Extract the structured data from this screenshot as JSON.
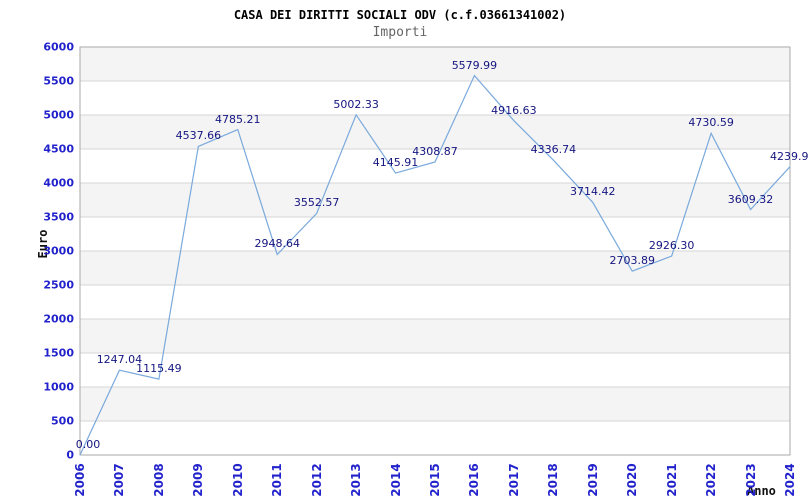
{
  "header": {
    "title": "CASA DEI DIRITTI SOCIALI ODV (c.f.03661341002)",
    "subtitle": "Importi"
  },
  "colors": {
    "line": "#7aa9dc",
    "tick_label": "#2222cc",
    "point_label": "#151580",
    "band_gray": "#f4f4f4",
    "band_white": "#ffffff",
    "gridline": "#d6d6d6",
    "plot_border": "#aaaaaa",
    "title": "#000000",
    "subtitle": "#666666",
    "axis_title": "#111111"
  },
  "chart_data": {
    "type": "line",
    "title": "CASA DEI DIRITTI SOCIALI ODV (c.f.03661341002)",
    "subtitle": "Importi",
    "xlabel": "Anno",
    "ylabel": "Euro",
    "categories": [
      "2006",
      "2007",
      "2008",
      "2009",
      "2010",
      "2011",
      "2012",
      "2013",
      "2014",
      "2015",
      "2016",
      "2017",
      "2018",
      "2019",
      "2020",
      "2021",
      "2022",
      "2023",
      "2024"
    ],
    "values": [
      0.0,
      1247.04,
      1115.49,
      4537.66,
      4785.21,
      2948.64,
      3552.57,
      5002.33,
      4145.91,
      4308.87,
      5579.99,
      4916.63,
      4336.74,
      3714.42,
      2703.89,
      2926.3,
      4730.59,
      3609.32,
      4239.9
    ],
    "point_labels": [
      "0.00",
      "1247.04",
      "1115.49",
      "4537.66",
      "4785.21",
      "2948.64",
      "3552.57",
      "5002.33",
      "4145.91",
      "4308.87",
      "5579.99",
      "4916.63",
      "4336.74",
      "3714.42",
      "2703.89",
      "2926.30",
      "4730.59",
      "3609.32",
      "4239.9"
    ],
    "yticks": [
      "0",
      "500",
      "1000",
      "1500",
      "2000",
      "2500",
      "3000",
      "3500",
      "4000",
      "4500",
      "5000",
      "5500",
      "6000"
    ],
    "ylim": [
      0,
      6000
    ],
    "ytick_step": 500,
    "grid": "horizontal-only",
    "bands": "alternating-gray-every-500",
    "legend": "none",
    "markers": "none"
  }
}
